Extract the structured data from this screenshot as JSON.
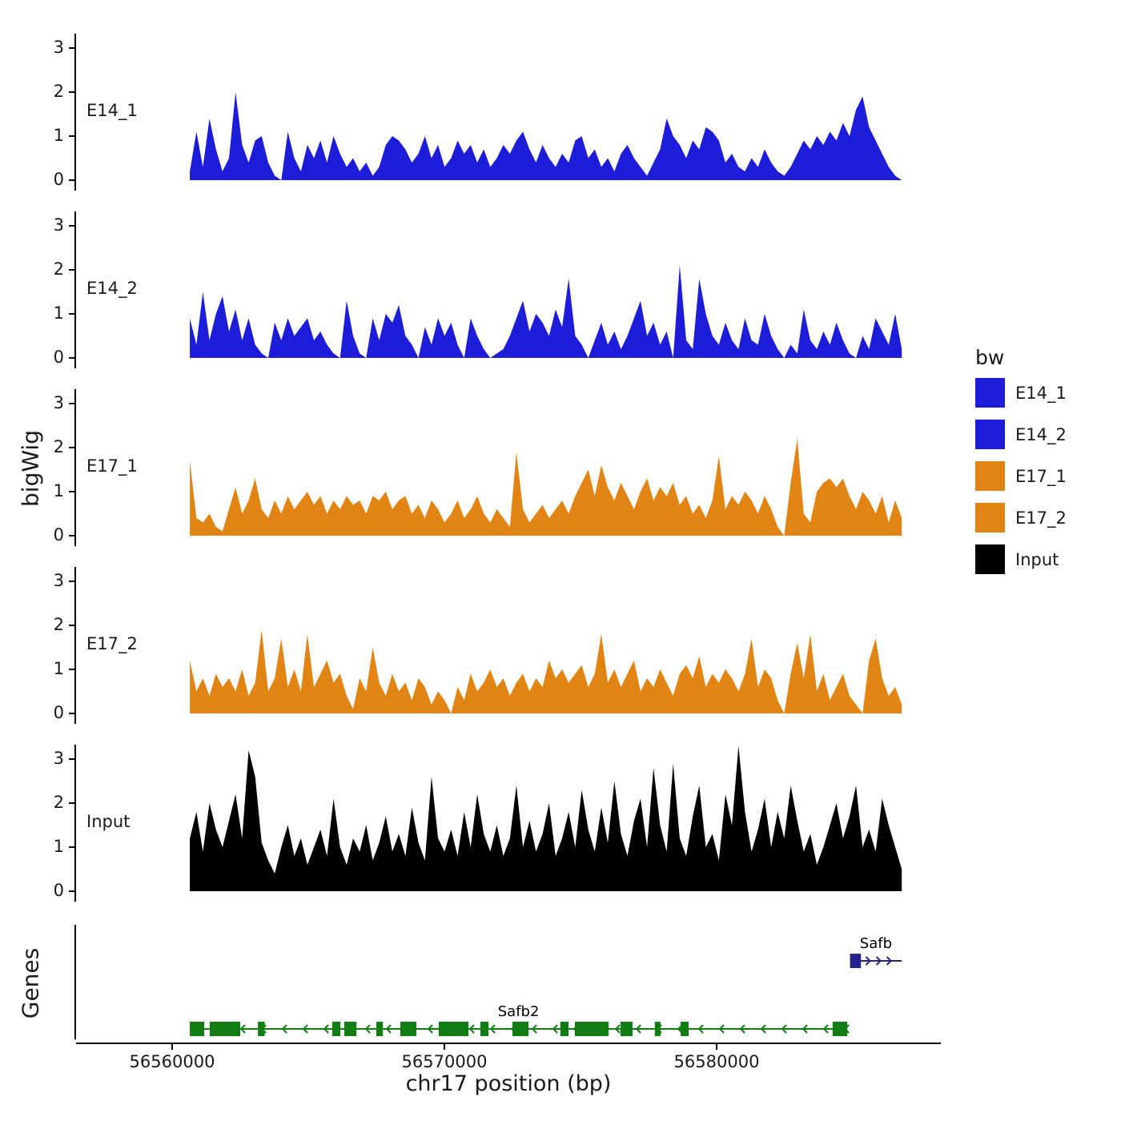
{
  "figure": {
    "y_axis_label": "bigWig",
    "genes_axis_label": "Genes",
    "x_axis_label": "chr17 position (bp)"
  },
  "legend": {
    "title": "bw",
    "items": [
      {
        "label": "E14_1",
        "color": "#1c1cd9"
      },
      {
        "label": "E14_2",
        "color": "#1c1cd9"
      },
      {
        "label": "E17_1",
        "color": "#E28413"
      },
      {
        "label": "E17_2",
        "color": "#E28413"
      },
      {
        "label": "Input",
        "color": "#000000"
      }
    ]
  },
  "chart_data": {
    "type": "area",
    "title": "",
    "xlabel": "chr17 position (bp)",
    "ylabel": "bigWig",
    "x_ticks": [
      56560000,
      56570000,
      56580000
    ],
    "x_range": [
      56556500,
      56588200
    ],
    "data_x_range": [
      56560650,
      56586800
    ],
    "y_ticks": [
      0,
      1,
      2,
      3
    ],
    "ylim": [
      0,
      3.5
    ],
    "grid": false,
    "legend_position": "right",
    "tracks": [
      {
        "name": "E14_1",
        "color": "#1c1cd9",
        "values": [
          0.2,
          1.1,
          0.3,
          1.4,
          0.7,
          0.2,
          0.5,
          2.0,
          0.8,
          0.4,
          0.9,
          1.0,
          0.4,
          0.1,
          0,
          1.1,
          0.5,
          0.2,
          0.8,
          0.5,
          0.9,
          0.4,
          1.0,
          0.6,
          0.3,
          0.5,
          0.2,
          0.4,
          0.1,
          0.3,
          0.8,
          1.0,
          0.9,
          0.7,
          0.4,
          0.6,
          1.0,
          0.5,
          0.8,
          0.3,
          0.5,
          0.9,
          0.6,
          0.8,
          0.4,
          0.7,
          0.3,
          0.5,
          0.8,
          0.6,
          0.9,
          1.1,
          0.7,
          0.4,
          0.8,
          0.5,
          0.3,
          0.6,
          0.4,
          0.9,
          1.0,
          0.5,
          0.7,
          0.3,
          0.5,
          0.2,
          0.6,
          0.8,
          0.5,
          0.3,
          0.1,
          0.4,
          0.7,
          1.4,
          1.0,
          0.8,
          0.5,
          0.9,
          0.7,
          1.2,
          1.1,
          0.9,
          0.4,
          0.6,
          0.3,
          0.2,
          0.5,
          0.3,
          0.7,
          0.4,
          0.2,
          0.1,
          0.3,
          0.6,
          0.9,
          0.7,
          1.0,
          0.8,
          1.1,
          0.9,
          1.3,
          1.0,
          1.6,
          1.9,
          1.2,
          0.9,
          0.6,
          0.3,
          0.1,
          0
        ]
      },
      {
        "name": "E14_2",
        "color": "#1c1cd9",
        "values": [
          0.9,
          0.3,
          1.5,
          0.4,
          1.0,
          1.4,
          0.6,
          1.1,
          0.4,
          0.9,
          0.3,
          0.1,
          0,
          0.8,
          0.4,
          0.9,
          0.5,
          0.7,
          0.9,
          0.4,
          0.6,
          0.3,
          0.1,
          0,
          1.3,
          0.5,
          0.1,
          0,
          0.9,
          0.4,
          1.0,
          0.8,
          1.2,
          0.5,
          0.3,
          0,
          0.7,
          0.3,
          0.9,
          0.5,
          0.8,
          0.3,
          0,
          0.9,
          0.5,
          0.2,
          0,
          0.1,
          0.2,
          0.5,
          0.9,
          1.3,
          0.6,
          1.0,
          0.8,
          0.5,
          1.1,
          0.7,
          1.8,
          0.5,
          0.3,
          0,
          0.4,
          0.8,
          0.3,
          0.6,
          0.2,
          0.5,
          0.9,
          1.3,
          0.5,
          0.8,
          0.3,
          0.6,
          0,
          2.1,
          0.4,
          0.2,
          1.8,
          1.0,
          0.5,
          0.3,
          0.8,
          0.4,
          0.2,
          0.9,
          0.4,
          0.3,
          1.0,
          0.5,
          0.2,
          0,
          0.3,
          0.1,
          1.1,
          0.4,
          0.2,
          0.6,
          0.3,
          0.8,
          0.4,
          0.1,
          0,
          0.5,
          0.2,
          0.9,
          0.6,
          0.3,
          1.0,
          0.2
        ]
      },
      {
        "name": "E17_1",
        "color": "#E28413",
        "values": [
          1.7,
          0.4,
          0.3,
          0.5,
          0.2,
          0.1,
          0.6,
          1.1,
          0.5,
          0.8,
          1.3,
          0.6,
          0.4,
          0.8,
          0.5,
          0.9,
          0.6,
          0.8,
          1.0,
          0.7,
          0.9,
          0.5,
          0.8,
          0.6,
          0.9,
          0.7,
          0.8,
          0.5,
          0.9,
          0.8,
          1.0,
          0.6,
          0.8,
          0.9,
          0.5,
          0.7,
          0.4,
          0.8,
          0.6,
          0.3,
          0.5,
          0.8,
          0.4,
          0.6,
          0.9,
          0.5,
          0.3,
          0.6,
          0.4,
          0.2,
          1.9,
          0.6,
          0.3,
          0.5,
          0.7,
          0.4,
          0.6,
          0.8,
          0.5,
          0.9,
          1.2,
          1.5,
          0.9,
          1.6,
          1.1,
          0.8,
          1.2,
          0.9,
          0.6,
          1.0,
          1.3,
          0.8,
          1.1,
          0.9,
          1.2,
          0.7,
          0.9,
          0.5,
          0.7,
          0.4,
          0.8,
          1.8,
          0.6,
          0.9,
          0.7,
          1.0,
          0.8,
          0.5,
          0.9,
          0.6,
          0.2,
          0,
          1.2,
          2.2,
          0.5,
          0.3,
          1.0,
          1.2,
          1.3,
          1.1,
          1.3,
          0.9,
          0.6,
          1.0,
          0.8,
          0.5,
          0.9,
          0.3,
          0.8,
          0.4
        ]
      },
      {
        "name": "E17_2",
        "color": "#E28413",
        "values": [
          1.2,
          0.5,
          0.8,
          0.4,
          0.9,
          0.6,
          0.8,
          0.5,
          1.0,
          0.4,
          0.7,
          1.9,
          0.5,
          0.8,
          1.7,
          0.6,
          1.0,
          0.5,
          1.8,
          0.6,
          0.9,
          1.2,
          0.7,
          0.9,
          0.4,
          0.1,
          0.8,
          0.5,
          1.5,
          0.7,
          0.4,
          0.9,
          0.5,
          0.7,
          0.3,
          0.8,
          0.6,
          0.2,
          0.5,
          0.3,
          0,
          0.6,
          0.3,
          0.9,
          0.5,
          0.7,
          1.0,
          0.6,
          0.8,
          0.4,
          0.7,
          0.9,
          0.5,
          0.8,
          0.6,
          1.2,
          0.8,
          1.0,
          0.7,
          0.9,
          1.1,
          0.6,
          0.9,
          1.8,
          0.7,
          1.0,
          0.6,
          0.9,
          1.2,
          0.5,
          0.8,
          0.6,
          1.0,
          0.7,
          0.4,
          0.9,
          1.1,
          0.8,
          1.3,
          0.6,
          0.9,
          0.7,
          1.0,
          0.8,
          0.5,
          0.9,
          1.7,
          0.6,
          1.0,
          0.8,
          0.3,
          0,
          0.9,
          1.6,
          0.8,
          1.8,
          0.5,
          0.9,
          0.3,
          0.6,
          0.9,
          0.4,
          0.2,
          0,
          1.2,
          1.7,
          0.8,
          0.4,
          0.6,
          0.2
        ]
      },
      {
        "name": "Input",
        "color": "#000000",
        "values": [
          1.2,
          1.8,
          0.9,
          2.0,
          1.4,
          1.0,
          1.6,
          2.2,
          1.2,
          3.2,
          2.6,
          1.1,
          0.7,
          0.4,
          1.0,
          1.5,
          0.8,
          1.2,
          0.6,
          1.0,
          1.4,
          0.8,
          2.1,
          1.0,
          0.6,
          1.2,
          0.9,
          1.5,
          0.7,
          1.1,
          1.7,
          0.9,
          1.3,
          0.8,
          1.9,
          1.1,
          0.7,
          2.6,
          1.2,
          0.9,
          1.4,
          0.8,
          1.8,
          1.0,
          2.2,
          1.3,
          0.9,
          1.5,
          0.8,
          1.2,
          2.4,
          1.0,
          1.6,
          0.9,
          1.3,
          2.0,
          0.8,
          1.2,
          1.8,
          1.0,
          2.3,
          1.4,
          0.9,
          1.9,
          1.1,
          2.5,
          1.3,
          0.8,
          1.6,
          2.1,
          1.0,
          2.8,
          1.5,
          0.9,
          2.9,
          1.2,
          0.8,
          1.7,
          2.4,
          1.0,
          1.3,
          0.7,
          2.2,
          1.5,
          3.3,
          1.8,
          0.9,
          1.4,
          2.1,
          1.0,
          1.8,
          1.2,
          2.4,
          1.6,
          0.9,
          1.3,
          0.6,
          1.0,
          1.5,
          2.0,
          1.2,
          1.7,
          2.4,
          1.0,
          1.4,
          0.9,
          2.1,
          1.5,
          1.0,
          0.5
        ]
      }
    ]
  },
  "genes": {
    "label": "Genes",
    "items": [
      {
        "name": "Safb",
        "strand": "+",
        "color": "#23238E",
        "start": 56584900,
        "end": 56586800,
        "exons": [
          [
            56584900,
            56585300
          ]
        ]
      },
      {
        "name": "Safb2",
        "strand": "-",
        "color": "#117c11",
        "start": 56560650,
        "end": 56584800,
        "exons": [
          [
            56560650,
            56561180
          ],
          [
            56561380,
            56562500
          ],
          [
            56563150,
            56563400
          ],
          [
            56565880,
            56566180
          ],
          [
            56566320,
            56566770
          ],
          [
            56567500,
            56567740
          ],
          [
            56568380,
            56568970
          ],
          [
            56569790,
            56570880
          ],
          [
            56571320,
            56571620
          ],
          [
            56572500,
            56573090
          ],
          [
            56574260,
            56574560
          ],
          [
            56574790,
            56576030
          ],
          [
            56576470,
            56576910
          ],
          [
            56577730,
            56577940
          ],
          [
            56578680,
            56578970
          ],
          [
            56584260,
            56584800
          ]
        ]
      }
    ]
  }
}
